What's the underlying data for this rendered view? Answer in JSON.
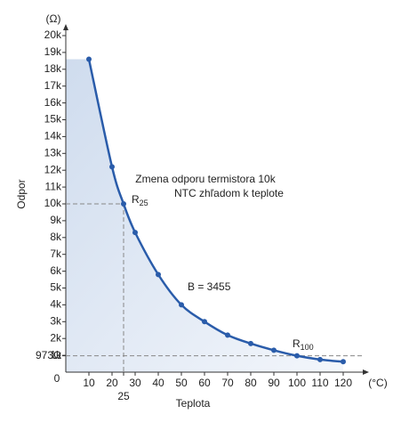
{
  "chart_data": {
    "type": "line",
    "title": "Zmena odporu termistora 10k",
    "subtitle": "NTC zhľadom k teplote",
    "x_label": "Teplota",
    "y_label": "Odpor",
    "x_unit": "(°C)",
    "y_unit": "(Ω)",
    "origin_label": "0",
    "x": [
      10,
      20,
      25,
      30,
      40,
      50,
      60,
      70,
      80,
      90,
      100,
      110,
      120
    ],
    "series": [
      {
        "name": "R",
        "color": "#2a5caa",
        "values": [
          18600,
          12200,
          10000,
          8300,
          5800,
          4000,
          3000,
          2200,
          1700,
          1300,
          973,
          750,
          620
        ]
      }
    ],
    "annotations": [
      {
        "text": "R",
        "sub": "25"
      },
      {
        "text": "B = 3455"
      },
      {
        "text": "R",
        "sub": "100"
      }
    ],
    "xlim": [
      0,
      130
    ],
    "ylim": [
      0,
      20000
    ],
    "xticks": [
      10,
      20,
      30,
      40,
      50,
      60,
      70,
      80,
      90,
      100,
      110,
      120
    ],
    "x_extra_tick": 25,
    "yticks": [
      {
        "value": 1000,
        "label": "1k"
      },
      {
        "value": 2000,
        "label": "2k"
      },
      {
        "value": 3000,
        "label": "3k"
      },
      {
        "value": 4000,
        "label": "4k"
      },
      {
        "value": 5000,
        "label": "5k"
      },
      {
        "value": 6000,
        "label": "6k"
      },
      {
        "value": 7000,
        "label": "7k"
      },
      {
        "value": 8000,
        "label": "8k"
      },
      {
        "value": 9000,
        "label": "9k"
      },
      {
        "value": 10000,
        "label": "10k"
      },
      {
        "value": 11000,
        "label": "11k"
      },
      {
        "value": 12000,
        "label": "12k"
      },
      {
        "value": 13000,
        "label": "13k"
      },
      {
        "value": 14000,
        "label": "14k"
      },
      {
        "value": 15000,
        "label": "15k"
      },
      {
        "value": 16000,
        "label": "16k"
      },
      {
        "value": 17000,
        "label": "17k"
      },
      {
        "value": 18000,
        "label": "18k"
      },
      {
        "value": 19000,
        "label": "19k"
      },
      {
        "value": 20000,
        "label": "20k"
      }
    ],
    "y_extra_tick": {
      "value": 973,
      "label": "973Ω"
    }
  }
}
